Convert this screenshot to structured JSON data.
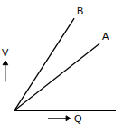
{
  "chart_data": {
    "type": "line",
    "x_label": "Q",
    "y_label": "V",
    "xlim": [
      0,
      10
    ],
    "ylim": [
      0,
      10
    ],
    "xticks": [],
    "yticks": [],
    "tick_labels": false,
    "grid": false,
    "series": [
      {
        "name": "A",
        "color": "#000000",
        "x": [
          0,
          8.4
        ],
        "values": [
          0,
          6.3
        ]
      },
      {
        "name": "B",
        "color": "#000000",
        "x": [
          0,
          5.9
        ],
        "values": [
          0,
          8.7
        ]
      }
    ]
  }
}
